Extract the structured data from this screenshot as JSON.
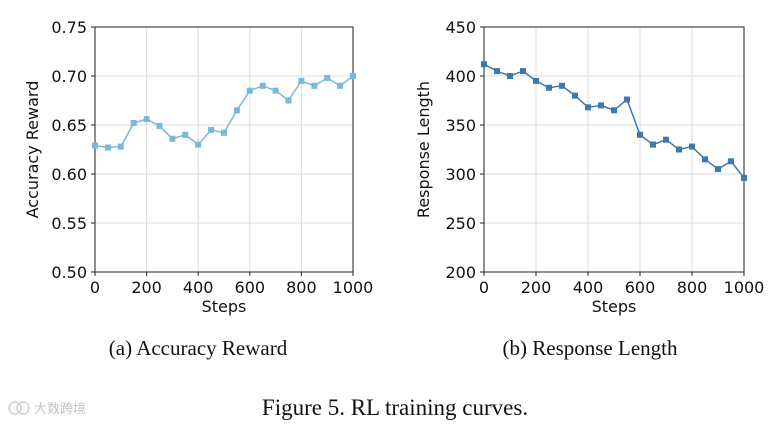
{
  "chart_data": [
    {
      "type": "line",
      "ylabel": "Accuracy Reward",
      "xlabel": "Steps",
      "subcaption": "(a) Accuracy Reward",
      "color": "#7ab8db",
      "xlim": [
        0,
        1000
      ],
      "ylim": [
        0.5,
        0.75
      ],
      "xticks": [
        "0",
        "200",
        "400",
        "600",
        "800",
        "1000"
      ],
      "xtick_values": [
        0,
        200,
        400,
        600,
        800,
        1000
      ],
      "yticks": [
        "0.50",
        "0.55",
        "0.60",
        "0.65",
        "0.70",
        "0.75"
      ],
      "ytick_values": [
        0.5,
        0.55,
        0.6,
        0.65,
        0.7,
        0.75
      ],
      "grid": true,
      "x": [
        0,
        50,
        100,
        150,
        200,
        250,
        300,
        350,
        400,
        450,
        500,
        550,
        600,
        650,
        700,
        750,
        800,
        850,
        900,
        950,
        1000
      ],
      "values": [
        0.629,
        0.627,
        0.628,
        0.652,
        0.656,
        0.649,
        0.636,
        0.64,
        0.63,
        0.645,
        0.642,
        0.665,
        0.685,
        0.69,
        0.685,
        0.675,
        0.695,
        0.69,
        0.698,
        0.69,
        0.7
      ]
    },
    {
      "type": "line",
      "ylabel": "Response Length",
      "xlabel": "Steps",
      "subcaption": "(b) Response Length",
      "color": "#3d79ae",
      "xlim": [
        0,
        1000
      ],
      "ylim": [
        200,
        450
      ],
      "xticks": [
        "0",
        "200",
        "400",
        "600",
        "800",
        "1000"
      ],
      "xtick_values": [
        0,
        200,
        400,
        600,
        800,
        1000
      ],
      "yticks": [
        "200",
        "250",
        "300",
        "350",
        "400",
        "450"
      ],
      "ytick_values": [
        200,
        250,
        300,
        350,
        400,
        450
      ],
      "grid": true,
      "x": [
        0,
        50,
        100,
        150,
        200,
        250,
        300,
        350,
        400,
        450,
        500,
        550,
        600,
        650,
        700,
        750,
        800,
        850,
        900,
        950,
        1000
      ],
      "values": [
        412,
        405,
        400,
        405,
        395,
        388,
        390,
        380,
        368,
        370,
        365,
        376,
        340,
        330,
        335,
        325,
        328,
        315,
        305,
        313,
        296
      ]
    }
  ],
  "caption": "Figure 5. RL training curves.",
  "watermark": "大数跨境"
}
